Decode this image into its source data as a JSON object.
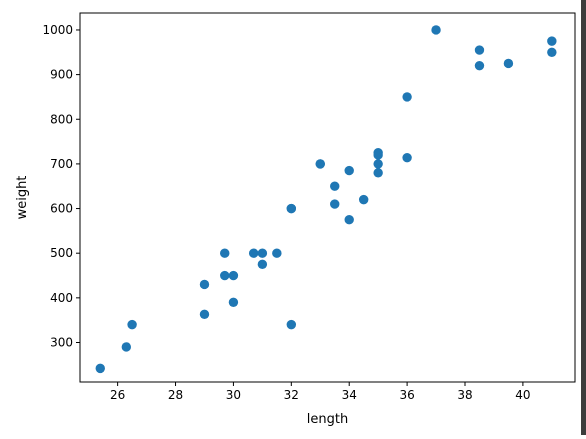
{
  "chart_data": {
    "type": "scatter",
    "title": "",
    "xlabel": "length",
    "ylabel": "weight",
    "xlim": [
      24.7,
      41.8
    ],
    "ylim": [
      211.5,
      1038.0
    ],
    "x_ticks": [
      26,
      28,
      30,
      32,
      34,
      36,
      38,
      40
    ],
    "y_ticks": [
      300,
      400,
      500,
      600,
      700,
      800,
      900,
      1000
    ],
    "grid": false,
    "point_color": "#1f77b4",
    "points": [
      {
        "x": 25.4,
        "y": 242
      },
      {
        "x": 26.3,
        "y": 290
      },
      {
        "x": 26.5,
        "y": 340
      },
      {
        "x": 29.0,
        "y": 363
      },
      {
        "x": 29.0,
        "y": 430
      },
      {
        "x": 29.7,
        "y": 450
      },
      {
        "x": 29.7,
        "y": 500
      },
      {
        "x": 30.0,
        "y": 390
      },
      {
        "x": 30.0,
        "y": 450
      },
      {
        "x": 30.7,
        "y": 500
      },
      {
        "x": 31.0,
        "y": 475
      },
      {
        "x": 31.0,
        "y": 500
      },
      {
        "x": 31.5,
        "y": 500
      },
      {
        "x": 32.0,
        "y": 340
      },
      {
        "x": 32.0,
        "y": 600
      },
      {
        "x": 32.0,
        "y": 600
      },
      {
        "x": 33.0,
        "y": 700
      },
      {
        "x": 33.0,
        "y": 700
      },
      {
        "x": 33.5,
        "y": 610
      },
      {
        "x": 33.5,
        "y": 650
      },
      {
        "x": 34.0,
        "y": 575
      },
      {
        "x": 34.0,
        "y": 685
      },
      {
        "x": 34.5,
        "y": 620
      },
      {
        "x": 35.0,
        "y": 680
      },
      {
        "x": 35.0,
        "y": 700
      },
      {
        "x": 35.0,
        "y": 725
      },
      {
        "x": 35.0,
        "y": 720
      },
      {
        "x": 36.0,
        "y": 714
      },
      {
        "x": 36.0,
        "y": 850
      },
      {
        "x": 37.0,
        "y": 1000
      },
      {
        "x": 38.5,
        "y": 920
      },
      {
        "x": 38.5,
        "y": 955
      },
      {
        "x": 39.5,
        "y": 925
      },
      {
        "x": 41.0,
        "y": 975
      },
      {
        "x": 41.0,
        "y": 950
      }
    ]
  }
}
